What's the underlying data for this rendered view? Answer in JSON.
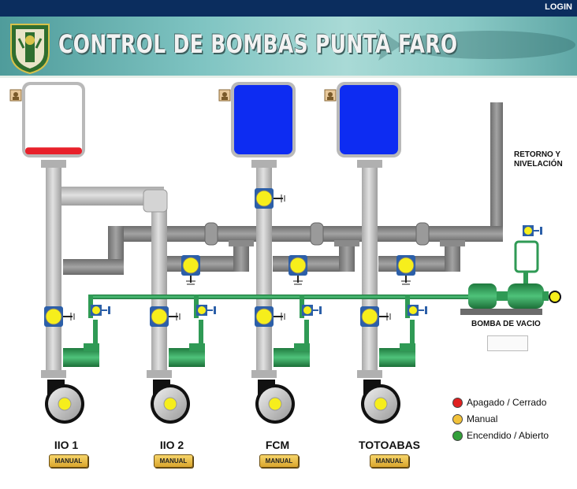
{
  "header": {
    "login_label": "LOGIN",
    "title": "CONTROL DE BOMBAS PUNTA FARO"
  },
  "pumps": [
    {
      "name": "IIO 1",
      "button": "MANUAL",
      "tank_level": 0.1,
      "tank_color": "#e8202a"
    },
    {
      "name": "IIO 2",
      "button": "MANUAL"
    },
    {
      "name": "FCM",
      "button": "MANUAL",
      "tank_level": 1.0,
      "tank_color": "#0d2cf2"
    },
    {
      "name": "TOTOABAS",
      "button": "MANUAL",
      "tank_level": 1.0,
      "tank_color": "#0d2cf2"
    }
  ],
  "labels": {
    "retorno": "RETORNO Y",
    "nivelacion": "NIVELACIÓN",
    "bomba_vacio": "BOMBA DE VACIO"
  },
  "legend": [
    {
      "label": "Apagado / Cerrado",
      "color": "#e02020"
    },
    {
      "label": "Manual",
      "color": "#f2c23a"
    },
    {
      "label": "Encendido / Abierto",
      "color": "#33a03a"
    }
  ],
  "colors": {
    "pipe_light": "#c4c4c4",
    "pipe_dark": "#8b8b8b",
    "pipe_green": "#35a15c",
    "valve_yellow": "#f6ee1c",
    "valve_blue": "#2c5fa8"
  },
  "icons": {
    "user": "user-icon",
    "shield": "shield-logo"
  }
}
